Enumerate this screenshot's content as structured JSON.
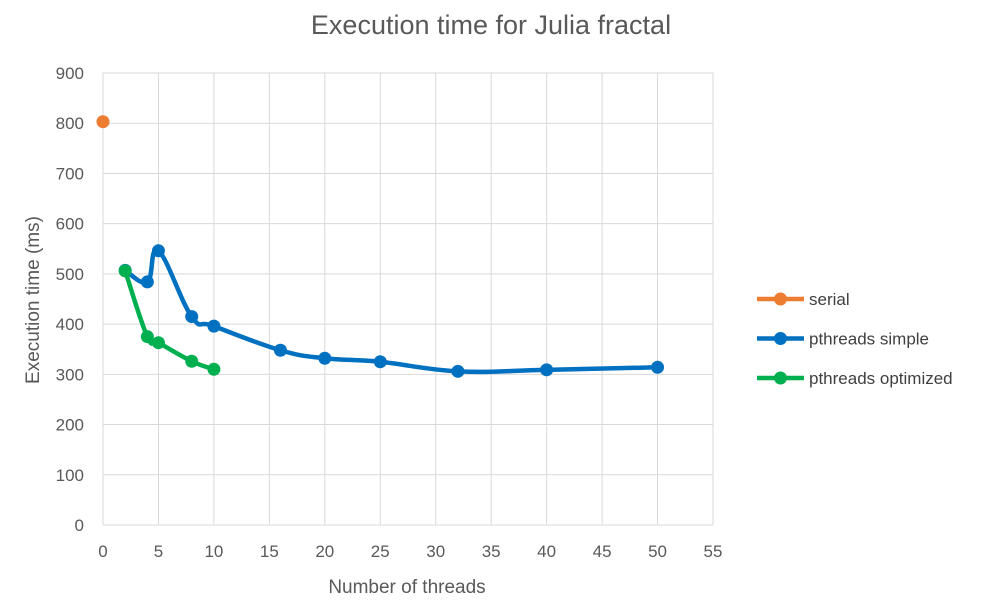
{
  "chart_data": {
    "type": "scatter",
    "title": "Execution time for Julia fractal",
    "xlabel": "Number of threads",
    "ylabel": "Execution time (ms)",
    "xlim": [
      0,
      55
    ],
    "ylim": [
      0,
      900
    ],
    "xticks": [
      0,
      5,
      10,
      15,
      20,
      25,
      30,
      35,
      40,
      45,
      50,
      55
    ],
    "yticks": [
      0,
      100,
      200,
      300,
      400,
      500,
      600,
      700,
      800,
      900
    ],
    "grid": true,
    "legend_position": "right",
    "series": [
      {
        "name": "serial",
        "color": "#ED7D31",
        "points": [
          [
            0,
            803
          ]
        ]
      },
      {
        "name": "pthreads simple",
        "color": "#0070C0",
        "points": [
          [
            2,
            507
          ],
          [
            4,
            484
          ],
          [
            5,
            546
          ],
          [
            8,
            415
          ],
          [
            10,
            396
          ],
          [
            16,
            348
          ],
          [
            20,
            332
          ],
          [
            25,
            325
          ],
          [
            32,
            306
          ],
          [
            40,
            309
          ],
          [
            50,
            314
          ]
        ]
      },
      {
        "name": "pthreads optimized",
        "color": "#00B050",
        "points": [
          [
            2,
            506
          ],
          [
            4,
            375
          ],
          [
            5,
            363
          ],
          [
            8,
            326
          ],
          [
            10,
            310
          ]
        ]
      }
    ]
  }
}
